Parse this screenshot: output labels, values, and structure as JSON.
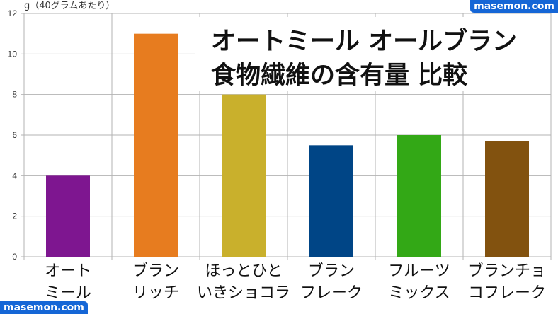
{
  "brand_text": "masemon.com",
  "chart_data": {
    "type": "bar",
    "title_line1": "オートミール オールブラン",
    "title_line2": "食物繊維の含有量 比較",
    "ylabel": "g（40グラムあたり）",
    "xlabel": "",
    "ylim": [
      0,
      12
    ],
    "yticks": [
      0,
      2,
      4,
      6,
      8,
      10,
      12
    ],
    "grid": true,
    "categories": [
      [
        "オート",
        "ミール"
      ],
      [
        "ブラン",
        "リッチ"
      ],
      [
        "ほっとひと",
        "いきショコラ"
      ],
      [
        "ブラン",
        "フレーク"
      ],
      [
        "フルーツ",
        "ミックス"
      ],
      [
        "ブランチョ",
        "コフレーク"
      ]
    ],
    "values": [
      4.0,
      11.0,
      8.0,
      5.5,
      6.0,
      5.7
    ],
    "colors": [
      "#7e1690",
      "#e77c1f",
      "#c9b02c",
      "#004586",
      "#33a816",
      "#82520f"
    ]
  }
}
